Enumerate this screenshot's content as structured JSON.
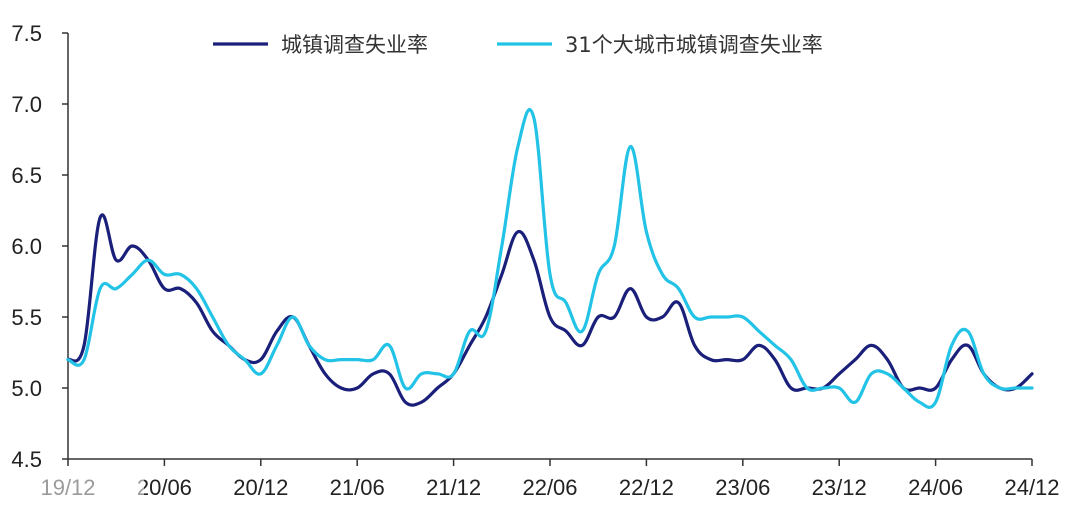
{
  "chart_data": {
    "type": "line",
    "title": "",
    "xlabel": "",
    "ylabel": "",
    "ylim": [
      4.5,
      7.5
    ],
    "y_ticks": [
      "4.5",
      "5.0",
      "5.5",
      "6.0",
      "6.5",
      "7.0",
      "7.5"
    ],
    "x_ticks": [
      "19/12",
      "20/06",
      "20/12",
      "21/06",
      "21/12",
      "22/06",
      "22/12",
      "23/06",
      "23/12",
      "24/06",
      "24/12"
    ],
    "x_range": [
      "2019-12",
      "2024-12"
    ],
    "grid": false,
    "legend_position": "top",
    "x": [
      "2019-12",
      "2020-01",
      "2020-02",
      "2020-03",
      "2020-04",
      "2020-05",
      "2020-06",
      "2020-07",
      "2020-08",
      "2020-09",
      "2020-10",
      "2020-11",
      "2020-12",
      "2021-01",
      "2021-02",
      "2021-03",
      "2021-04",
      "2021-05",
      "2021-06",
      "2021-07",
      "2021-08",
      "2021-09",
      "2021-10",
      "2021-11",
      "2021-12",
      "2022-01",
      "2022-02",
      "2022-03",
      "2022-04",
      "2022-05",
      "2022-06",
      "2022-07",
      "2022-08",
      "2022-09",
      "2022-10",
      "2022-11",
      "2022-12",
      "2023-01",
      "2023-02",
      "2023-03",
      "2023-04",
      "2023-05",
      "2023-06",
      "2023-07",
      "2023-08",
      "2023-09",
      "2023-10",
      "2023-11",
      "2023-12",
      "2024-01",
      "2024-02",
      "2024-03",
      "2024-04",
      "2024-05",
      "2024-06",
      "2024-07",
      "2024-08",
      "2024-09",
      "2024-10",
      "2024-11",
      "2024-12"
    ],
    "series": [
      {
        "name": "城镇调查失业率",
        "color": "#1a1f7a",
        "values": [
          5.2,
          5.3,
          6.2,
          5.9,
          6.0,
          5.9,
          5.7,
          5.7,
          5.6,
          5.4,
          5.3,
          5.2,
          5.2,
          5.4,
          5.5,
          5.3,
          5.1,
          5.0,
          5.0,
          5.1,
          5.1,
          4.9,
          4.9,
          5.0,
          5.1,
          5.3,
          5.5,
          5.8,
          6.1,
          5.9,
          5.5,
          5.4,
          5.3,
          5.5,
          5.5,
          5.7,
          5.5,
          5.5,
          5.6,
          5.3,
          5.2,
          5.2,
          5.2,
          5.3,
          5.2,
          5.0,
          5.0,
          5.0,
          5.1,
          5.2,
          5.3,
          5.2,
          5.0,
          5.0,
          5.0,
          5.2,
          5.3,
          5.1,
          5.0,
          5.0,
          5.1
        ]
      },
      {
        "name": "31个大城市城镇调查失业率",
        "color": "#22c3e6",
        "values": [
          5.2,
          5.2,
          5.7,
          5.7,
          5.8,
          5.9,
          5.8,
          5.8,
          5.7,
          5.5,
          5.3,
          5.2,
          5.1,
          5.3,
          5.5,
          5.3,
          5.2,
          5.2,
          5.2,
          5.2,
          5.3,
          5.0,
          5.1,
          5.1,
          5.1,
          5.4,
          5.4,
          6.0,
          6.7,
          6.9,
          5.8,
          5.6,
          5.4,
          5.8,
          6.0,
          6.7,
          6.1,
          5.8,
          5.7,
          5.5,
          5.5,
          5.5,
          5.5,
          5.4,
          5.3,
          5.2,
          5.0,
          5.0,
          5.0,
          4.9,
          5.1,
          5.1,
          5.0,
          4.9,
          4.9,
          5.3,
          5.4,
          5.1,
          5.0,
          5.0,
          5.0
        ]
      }
    ]
  }
}
